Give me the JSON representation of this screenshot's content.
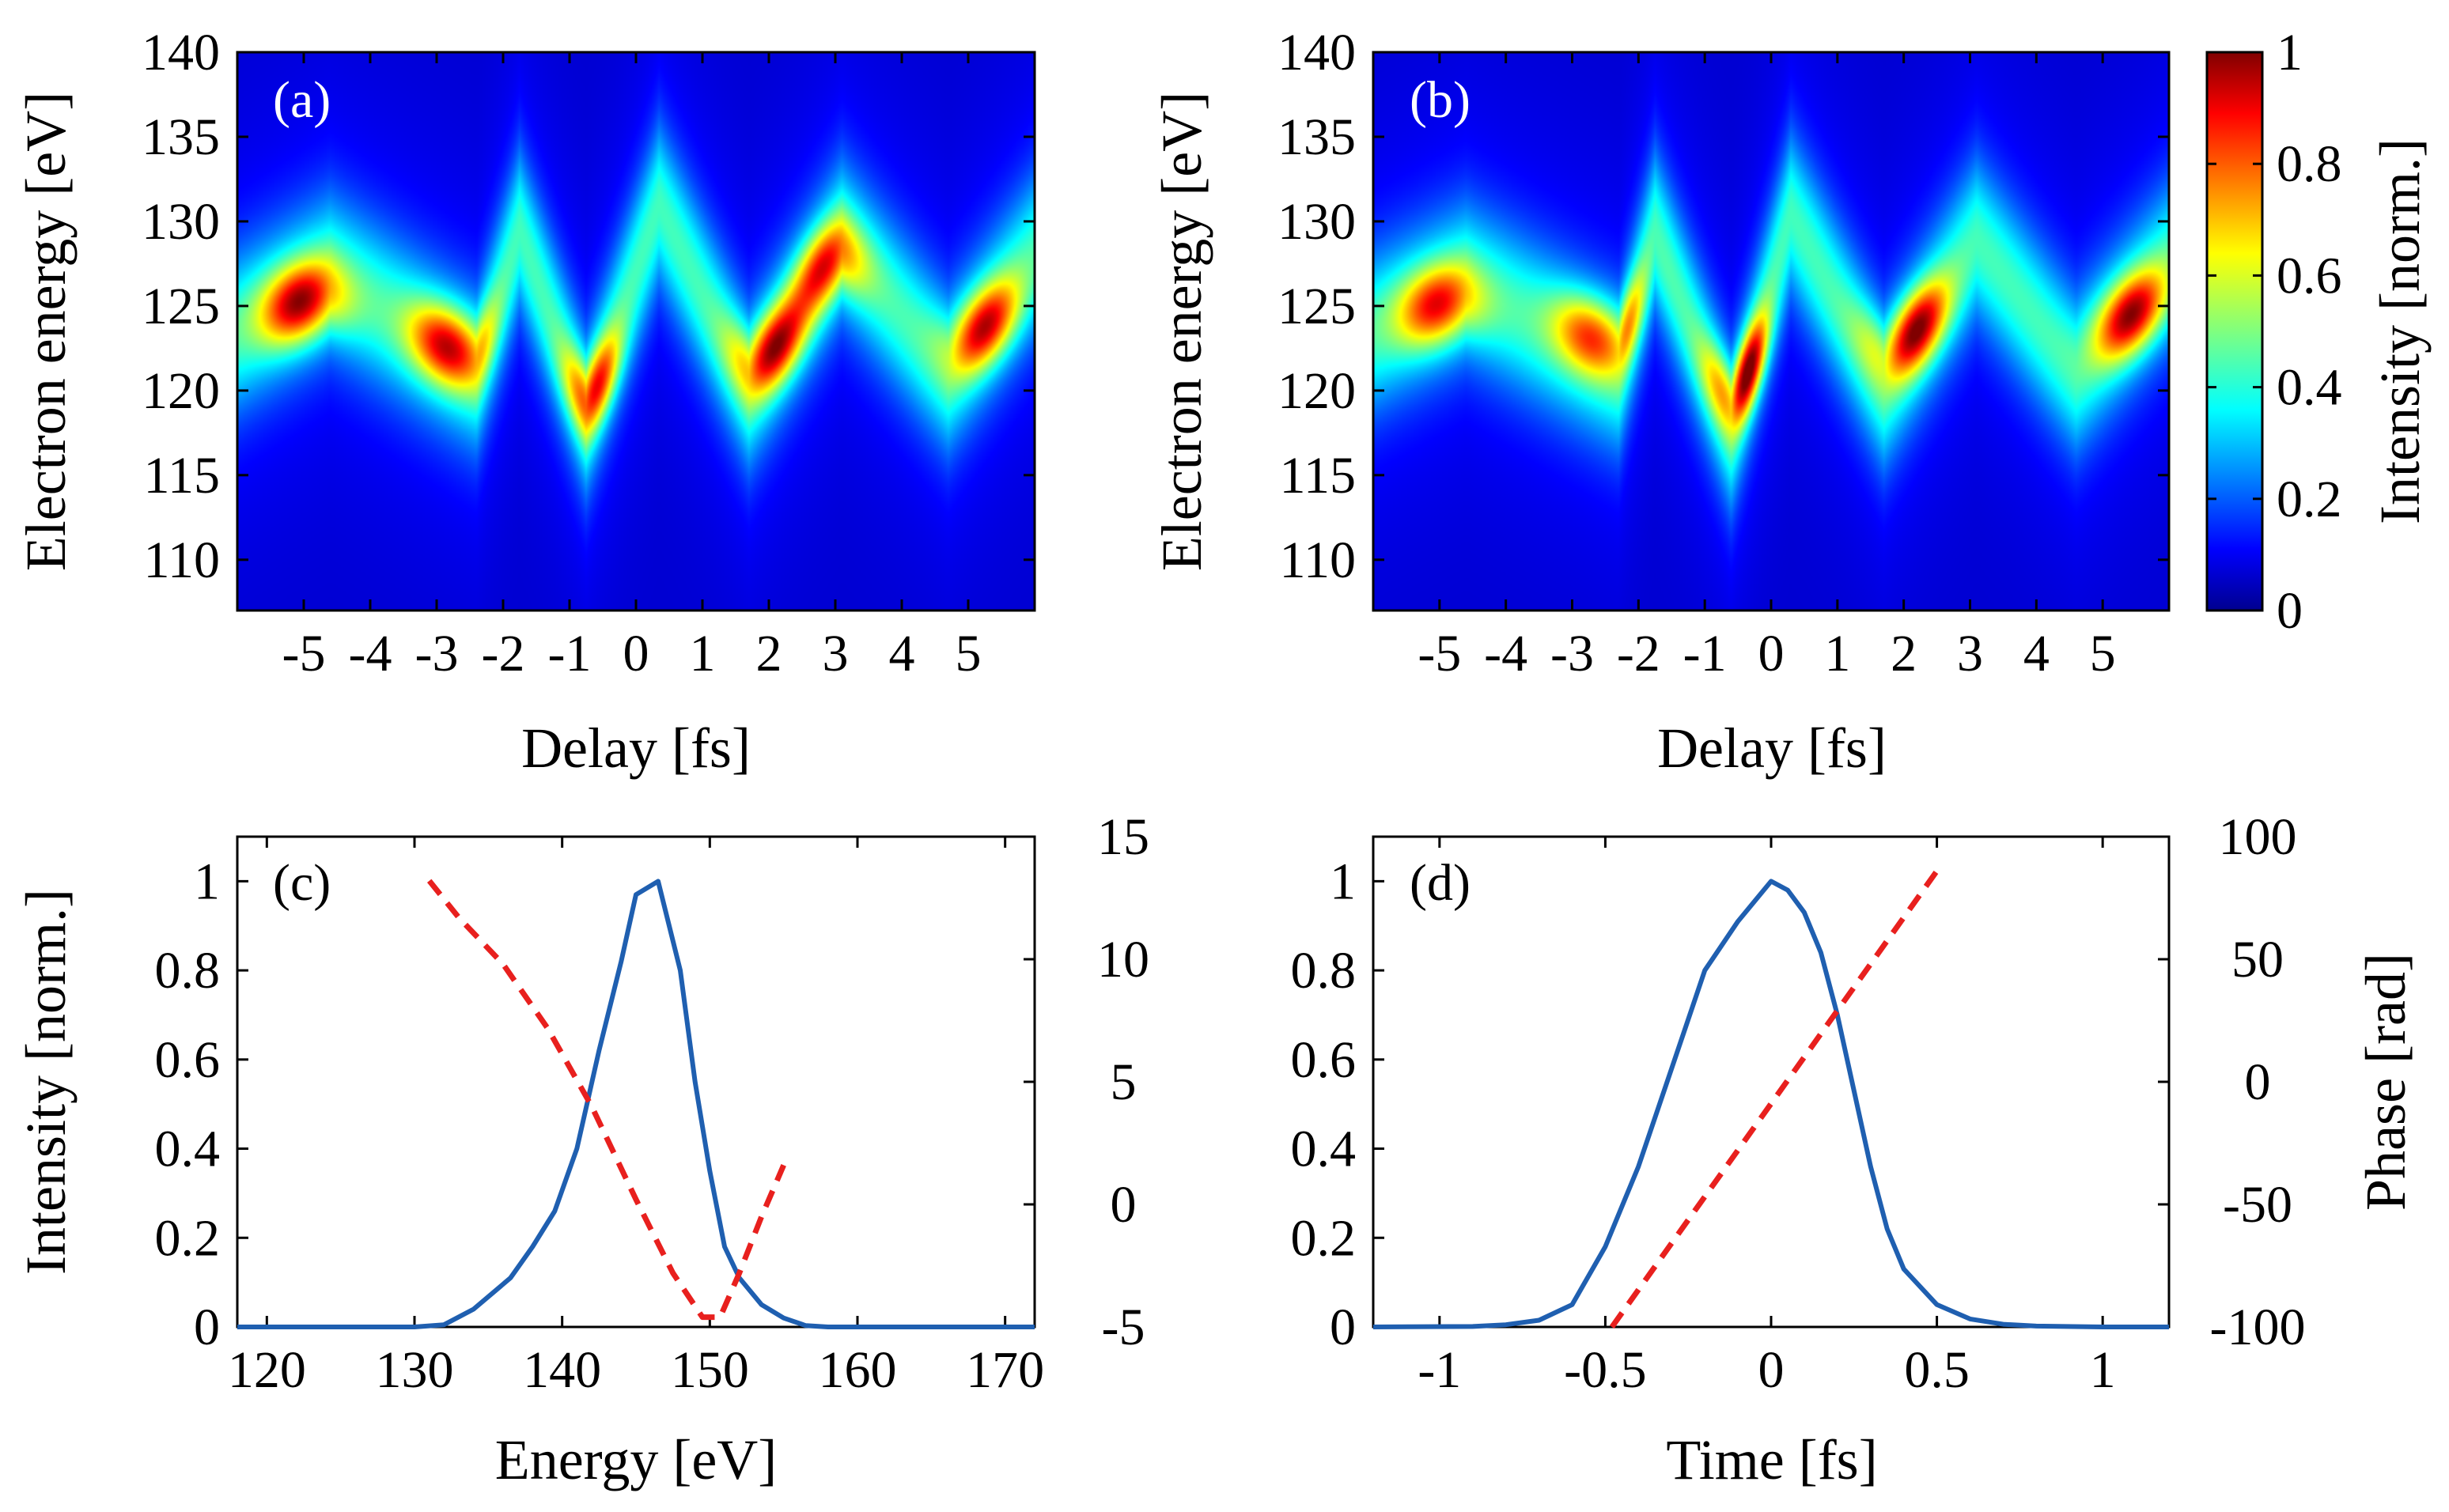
{
  "figure": {
    "colorbar": {
      "label": "Intensity [norm.]",
      "ticks": [
        "0",
        "0.2",
        "0.4",
        "0.6",
        "0.8",
        "1"
      ],
      "range": [
        0,
        1
      ],
      "colormap": "jet"
    }
  },
  "chart_data": [
    {
      "panel": "(a)",
      "type": "heatmap",
      "xlabel": "Delay [fs]",
      "ylabel": "Electron energy [eV]",
      "xlim": [
        -6,
        6
      ],
      "ylim": [
        107,
        140
      ],
      "xticks": [
        "-5",
        "-4",
        "-3",
        "-2",
        "-1",
        "0",
        "1",
        "2",
        "3",
        "4",
        "5"
      ],
      "yticks": [
        "110",
        "115",
        "120",
        "125",
        "130",
        "135",
        "140"
      ],
      "streak": {
        "zigzag_vertices": [
          [
            -6,
            123.5
          ],
          [
            -4.6,
            127
          ],
          [
            -2.4,
            121
          ],
          [
            -1.75,
            129.5
          ],
          [
            -0.75,
            118.5
          ],
          [
            0.35,
            131
          ],
          [
            1.7,
            120
          ],
          [
            3.1,
            129
          ],
          [
            4.7,
            121
          ],
          [
            6,
            128
          ]
        ],
        "peaks": [
          {
            "x": -5.0,
            "y": 124.5,
            "amp": 1.0
          },
          {
            "x": -2.8,
            "y": 123.0,
            "amp": 0.85
          },
          {
            "x": -0.5,
            "y": 120.0,
            "amp": 0.75
          },
          {
            "x": 2.1,
            "y": 122.5,
            "amp": 0.9
          },
          {
            "x": 2.8,
            "y": 127.5,
            "amp": 0.75
          },
          {
            "x": 5.3,
            "y": 123.5,
            "amp": 0.85
          }
        ]
      }
    },
    {
      "panel": "(b)",
      "type": "heatmap",
      "xlabel": "Delay [fs]",
      "ylabel": "Electron energy [eV]",
      "xlim": [
        -6,
        6
      ],
      "ylim": [
        107,
        140
      ],
      "xticks": [
        "-5",
        "-4",
        "-3",
        "-2",
        "-1",
        "0",
        "1",
        "2",
        "3",
        "4",
        "5"
      ],
      "yticks": [
        "110",
        "115",
        "120",
        "125",
        "130",
        "135",
        "140"
      ],
      "streak": {
        "zigzag_vertices": [
          [
            -6,
            123.5
          ],
          [
            -4.6,
            126.5
          ],
          [
            -2.3,
            121
          ],
          [
            -1.75,
            129.5
          ],
          [
            -0.6,
            117.5
          ],
          [
            0.3,
            130.5
          ],
          [
            1.7,
            120
          ],
          [
            3.1,
            129
          ],
          [
            4.6,
            121
          ],
          [
            6,
            127.5
          ]
        ],
        "peaks": [
          {
            "x": -5.0,
            "y": 124.5,
            "amp": 0.8
          },
          {
            "x": -2.6,
            "y": 124.5,
            "amp": 0.95
          },
          {
            "x": -0.3,
            "y": 121.0,
            "amp": 1.0
          },
          {
            "x": 2.1,
            "y": 124.0,
            "amp": 1.0
          },
          {
            "x": 5.5,
            "y": 124.0,
            "amp": 0.95
          }
        ]
      }
    },
    {
      "panel": "(c)",
      "type": "line",
      "xlabel": "Energy [eV]",
      "ylabel": "Intensity [norm.]",
      "ylabel_right": "",
      "xlim": [
        118,
        172
      ],
      "ylim": [
        0,
        1.1
      ],
      "ylim_right": [
        -5,
        15
      ],
      "xticks": [
        "120",
        "130",
        "140",
        "150",
        "160",
        "170"
      ],
      "yticks": [
        "0",
        "0.2",
        "0.4",
        "0.6",
        "0.8",
        "1"
      ],
      "yticks_right": [
        "-5",
        "0",
        "5",
        "10",
        "15"
      ],
      "series": [
        {
          "name": "Intensity",
          "axis": "left",
          "color": "#1f5fb0",
          "style": "solid",
          "x": [
            118,
            130,
            132,
            134,
            136.5,
            138,
            139.5,
            141,
            142.5,
            144,
            145,
            146.5,
            148,
            149,
            150,
            151,
            152,
            153.5,
            155,
            156.5,
            158,
            172
          ],
          "y": [
            0,
            0,
            0.005,
            0.04,
            0.11,
            0.18,
            0.26,
            0.4,
            0.62,
            0.82,
            0.97,
            1.0,
            0.8,
            0.55,
            0.35,
            0.18,
            0.11,
            0.05,
            0.02,
            0.003,
            0,
            0
          ]
        },
        {
          "name": "Phase",
          "axis": "right",
          "color": "#e8201e",
          "style": "dashed",
          "x": [
            131,
            133,
            136,
            139,
            142,
            145,
            147.5,
            149.5,
            150.7,
            152,
            153.5,
            155
          ],
          "y": [
            13.2,
            11.7,
            9.8,
            7.2,
            4.0,
            0.2,
            -2.8,
            -4.6,
            -4.6,
            -2.8,
            -0.5,
            1.6
          ]
        }
      ]
    },
    {
      "panel": "(d)",
      "type": "line",
      "xlabel": "Time [fs]",
      "ylabel": "",
      "ylabel_right": "Phase [rad]",
      "xlim": [
        -1.2,
        1.2
      ],
      "ylim": [
        0,
        1.1
      ],
      "ylim_right": [
        -100,
        100
      ],
      "xticks": [
        "-1",
        "-0.5",
        "0",
        "0.5",
        "1"
      ],
      "yticks": [
        "0",
        "0.2",
        "0.4",
        "0.6",
        "0.8",
        "1"
      ],
      "yticks_right": [
        "-100",
        "-50",
        "0",
        "50",
        "100"
      ],
      "series": [
        {
          "name": "Intensity",
          "axis": "left",
          "color": "#1f5fb0",
          "style": "solid",
          "x": [
            -1.2,
            -0.9,
            -0.8,
            -0.7,
            -0.6,
            -0.5,
            -0.4,
            -0.3,
            -0.2,
            -0.1,
            0,
            0.05,
            0.1,
            0.15,
            0.2,
            0.25,
            0.3,
            0.35,
            0.4,
            0.5,
            0.6,
            0.7,
            0.8,
            1.0,
            1.2
          ],
          "y": [
            0,
            0.001,
            0.005,
            0.015,
            0.05,
            0.18,
            0.36,
            0.58,
            0.8,
            0.91,
            1.0,
            0.98,
            0.93,
            0.84,
            0.7,
            0.53,
            0.36,
            0.22,
            0.13,
            0.05,
            0.018,
            0.006,
            0.002,
            0,
            0
          ]
        },
        {
          "name": "Phase",
          "axis": "right",
          "color": "#e8201e",
          "style": "dashed",
          "x": [
            -0.48,
            0.5
          ],
          "y": [
            -100,
            86
          ]
        }
      ]
    }
  ]
}
